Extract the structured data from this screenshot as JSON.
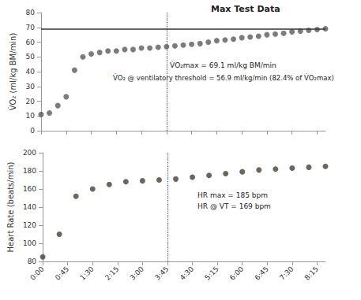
{
  "chart_data": [
    {
      "type": "scatter",
      "title": "Max Test Data",
      "y_label": "V̇O₂ (ml/kg BM/min)",
      "annotations": [
        "V̇O₂max = 69.1 ml/kg BM/min",
        "V̇O₂ @ ventilatory threshold = 56.9 ml/kg/min (82.4% of V̇O₂max)"
      ],
      "x": [
        0,
        15,
        30,
        45,
        60,
        75,
        90,
        105,
        120,
        135,
        150,
        165,
        180,
        195,
        210,
        225,
        240,
        255,
        270,
        285,
        300,
        315,
        330,
        345,
        360,
        375,
        390,
        405,
        420,
        435,
        450,
        465,
        480,
        495,
        510
      ],
      "values": [
        11,
        12,
        17,
        23,
        41,
        50,
        52,
        53,
        54,
        54,
        55,
        55,
        56,
        56,
        56.5,
        56.9,
        57.5,
        58,
        58.5,
        59,
        60,
        61,
        61.5,
        62,
        63,
        63.5,
        64,
        65,
        65.5,
        66,
        67,
        67.5,
        68,
        68.5,
        69.1
      ],
      "hline": 69.1,
      "vline": 225,
      "color": "#5b5b5b",
      "marker": "circle",
      "xlim": [
        0,
        510
      ],
      "xticks": [
        {
          "value": 0,
          "label": "0:00"
        },
        {
          "value": 45,
          "label": "0:45"
        },
        {
          "value": 90,
          "label": "1:30"
        },
        {
          "value": 135,
          "label": "2:15"
        },
        {
          "value": 180,
          "label": "3:00"
        },
        {
          "value": 225,
          "label": "3:45"
        },
        {
          "value": 270,
          "label": "4:30"
        },
        {
          "value": 315,
          "label": "5:15"
        },
        {
          "value": 360,
          "label": "6:00"
        },
        {
          "value": 405,
          "label": "6:45"
        },
        {
          "value": 450,
          "label": "7:30"
        },
        {
          "value": 495,
          "label": "8:15"
        }
      ],
      "ylim": [
        0,
        80
      ],
      "yticks": [
        0,
        10,
        20,
        30,
        40,
        50,
        60,
        70,
        80
      ],
      "grid": false,
      "tick_labels": "y"
    },
    {
      "type": "scatter",
      "y_label": "Heart Rate (beats/min)",
      "annotations": [
        "HR max = 185 bpm",
        "HR @ VT = 169 bpm"
      ],
      "x": [
        0,
        30,
        60,
        90,
        120,
        150,
        180,
        210,
        240,
        270,
        300,
        330,
        360,
        390,
        420,
        450,
        480,
        510
      ],
      "values": [
        85,
        110,
        152,
        160,
        165,
        168,
        169,
        170,
        171,
        173,
        175,
        177,
        179,
        181,
        182,
        183,
        184,
        185
      ],
      "vline": 225,
      "color": "#4a3f36",
      "marker": "circle",
      "xlim": [
        0,
        510
      ],
      "xticks": [
        {
          "value": 0,
          "label": "0:00"
        },
        {
          "value": 45,
          "label": "0:45"
        },
        {
          "value": 90,
          "label": "1:30"
        },
        {
          "value": 135,
          "label": "2:15"
        },
        {
          "value": 180,
          "label": "3:00"
        },
        {
          "value": 225,
          "label": "3:45"
        },
        {
          "value": 270,
          "label": "4:30"
        },
        {
          "value": 315,
          "label": "5:15"
        },
        {
          "value": 360,
          "label": "6:00"
        },
        {
          "value": 405,
          "label": "6:45"
        },
        {
          "value": 450,
          "label": "7:30"
        },
        {
          "value": 495,
          "label": "8:15"
        }
      ],
      "ylim": [
        80,
        200
      ],
      "yticks": [
        80,
        100,
        120,
        140,
        160,
        180,
        200
      ],
      "grid": false,
      "tick_labels": true
    }
  ]
}
